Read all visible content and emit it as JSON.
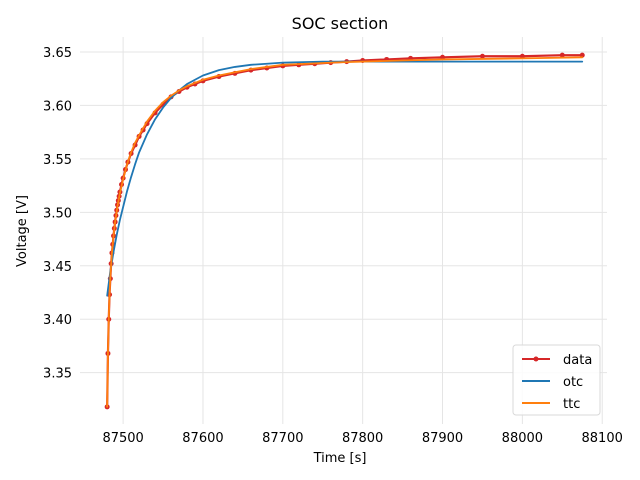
{
  "chart_data": {
    "type": "line",
    "title": "SOC section",
    "xlabel": "Time [s]",
    "ylabel": "Voltage [V]",
    "xlim": [
      87446,
      88106
    ],
    "ylim": [
      3.302,
      3.664
    ],
    "xticks": [
      87500,
      87600,
      87700,
      87800,
      87900,
      88000,
      88100
    ],
    "xtick_labels": [
      "87500",
      "87600",
      "87700",
      "87800",
      "87900",
      "88000",
      "88100"
    ],
    "yticks": [
      3.35,
      3.4,
      3.45,
      3.5,
      3.55,
      3.6,
      3.65
    ],
    "ytick_labels": [
      "3.35",
      "3.40",
      "3.45",
      "3.50",
      "3.55",
      "3.60",
      "3.65"
    ],
    "grid": true,
    "legend_position": "lower-right",
    "series": [
      {
        "name": "data",
        "color": "#d62728",
        "marker": "circle",
        "x": [
          87480,
          87481,
          87482,
          87483,
          87484,
          87485,
          87486,
          87487,
          87488,
          87489,
          87490,
          87491,
          87492,
          87493,
          87494,
          87495,
          87496,
          87498,
          87500,
          87503,
          87506,
          87510,
          87515,
          87520,
          87525,
          87530,
          87540,
          87550,
          87560,
          87570,
          87580,
          87590,
          87600,
          87620,
          87640,
          87660,
          87680,
          87700,
          87720,
          87740,
          87760,
          87780,
          87800,
          87830,
          87860,
          87900,
          87950,
          88000,
          88050,
          88075
        ],
        "y": [
          3.318,
          3.368,
          3.4,
          3.423,
          3.438,
          3.452,
          3.462,
          3.47,
          3.478,
          3.485,
          3.491,
          3.497,
          3.502,
          3.507,
          3.511,
          3.515,
          3.519,
          3.526,
          3.532,
          3.54,
          3.547,
          3.555,
          3.563,
          3.571,
          3.577,
          3.583,
          3.593,
          3.601,
          3.608,
          3.613,
          3.617,
          3.62,
          3.623,
          3.627,
          3.63,
          3.633,
          3.635,
          3.637,
          3.638,
          3.639,
          3.64,
          3.641,
          3.642,
          3.643,
          3.644,
          3.645,
          3.646,
          3.646,
          3.647,
          3.647
        ]
      },
      {
        "name": "otc",
        "color": "#1f77b4",
        "marker": "none",
        "x": [
          87480,
          87484,
          87488,
          87492,
          87496,
          87500,
          87505,
          87510,
          87515,
          87520,
          87530,
          87540,
          87550,
          87560,
          87570,
          87580,
          87590,
          87600,
          87620,
          87640,
          87660,
          87680,
          87700,
          87750,
          87800,
          87900,
          88000,
          88075
        ],
        "y": [
          3.422,
          3.445,
          3.463,
          3.479,
          3.493,
          3.505,
          3.52,
          3.533,
          3.545,
          3.556,
          3.573,
          3.587,
          3.598,
          3.607,
          3.614,
          3.62,
          3.624,
          3.628,
          3.633,
          3.636,
          3.638,
          3.639,
          3.64,
          3.641,
          3.641,
          3.641,
          3.641,
          3.641
        ]
      },
      {
        "name": "ttc",
        "color": "#ff7f0e",
        "marker": "none",
        "x": [
          87480,
          87481,
          87482,
          87483,
          87484,
          87486,
          87488,
          87490,
          87493,
          87496,
          87500,
          87505,
          87510,
          87515,
          87520,
          87530,
          87540,
          87550,
          87560,
          87570,
          87580,
          87590,
          87600,
          87620,
          87640,
          87660,
          87680,
          87700,
          87730,
          87760,
          87800,
          87850,
          87900,
          88000,
          88075
        ],
        "y": [
          3.318,
          3.368,
          3.4,
          3.423,
          3.44,
          3.462,
          3.478,
          3.491,
          3.506,
          3.518,
          3.531,
          3.545,
          3.556,
          3.565,
          3.572,
          3.585,
          3.595,
          3.603,
          3.609,
          3.614,
          3.618,
          3.621,
          3.624,
          3.628,
          3.631,
          3.634,
          3.636,
          3.638,
          3.639,
          3.64,
          3.641,
          3.642,
          3.643,
          3.644,
          3.645
        ]
      }
    ]
  }
}
